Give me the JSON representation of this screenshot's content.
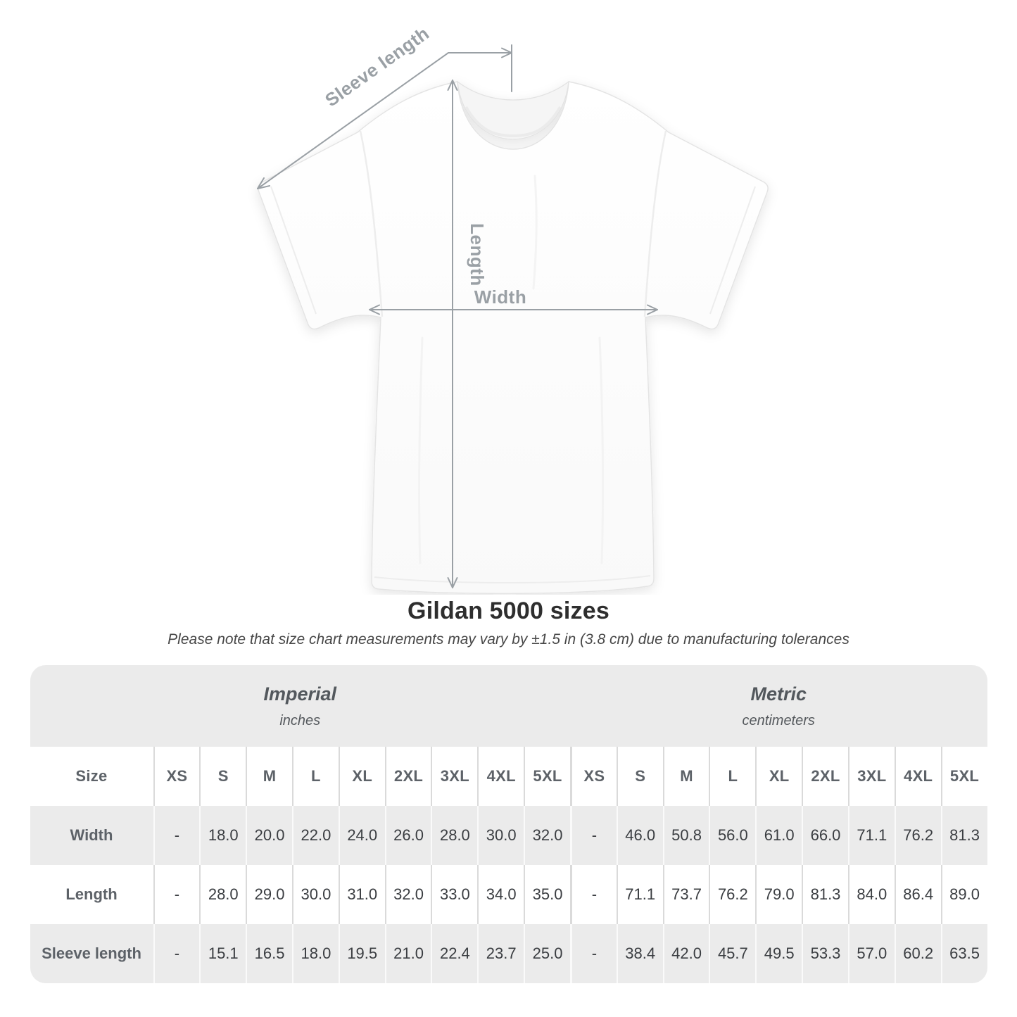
{
  "diagram": {
    "labels": {
      "sleeve_length": "Sleeve length",
      "length": "Length",
      "width": "Width"
    },
    "annotation_color": "#9aa0a5"
  },
  "title": "Gildan 5000 sizes",
  "subtitle": "Please note that size chart measurements may vary by ±1.5 in (3.8 cm) due to manufacturing tolerances",
  "table": {
    "size_header_label": "Size",
    "unit_groups": [
      {
        "label": "Imperial",
        "sublabel": "inches"
      },
      {
        "label": "Metric",
        "sublabel": "centimeters"
      }
    ],
    "sizes": [
      "XS",
      "S",
      "M",
      "L",
      "XL",
      "2XL",
      "3XL",
      "4XL",
      "5XL"
    ],
    "rows": [
      {
        "label": "Width",
        "imperial": [
          "-",
          "18.0",
          "20.0",
          "22.0",
          "24.0",
          "26.0",
          "28.0",
          "30.0",
          "32.0"
        ],
        "metric": [
          "-",
          "46.0",
          "50.8",
          "56.0",
          "61.0",
          "66.0",
          "71.1",
          "76.2",
          "81.3"
        ]
      },
      {
        "label": "Length",
        "imperial": [
          "-",
          "28.0",
          "29.0",
          "30.0",
          "31.0",
          "32.0",
          "33.0",
          "34.0",
          "35.0"
        ],
        "metric": [
          "-",
          "71.1",
          "73.7",
          "76.2",
          "79.0",
          "81.3",
          "84.0",
          "86.4",
          "89.0"
        ]
      },
      {
        "label": "Sleeve length",
        "imperial": [
          "-",
          "15.1",
          "16.5",
          "18.0",
          "19.5",
          "21.0",
          "22.4",
          "23.7",
          "25.0"
        ],
        "metric": [
          "-",
          "38.4",
          "42.0",
          "45.7",
          "49.5",
          "53.3",
          "57.0",
          "60.2",
          "63.5"
        ]
      }
    ]
  },
  "colors": {
    "band_gray": "#ebebeb",
    "separator_on_white": "#dadada",
    "separator_on_gray": "#fafafa",
    "label_gray": "#5d6268",
    "value_dark": "#3a3d41",
    "annotation_gray": "#9aa0a5"
  },
  "chart_data": {
    "type": "table",
    "title": "Gildan 5000 sizes",
    "note": "Please note that size chart measurements may vary by ±1.5 in (3.8 cm) due to manufacturing tolerances",
    "columns": [
      "Size",
      "XS",
      "S",
      "M",
      "L",
      "XL",
      "2XL",
      "3XL",
      "4XL",
      "5XL"
    ],
    "imperial_unit": "inches",
    "metric_unit": "centimeters",
    "rows_imperial": [
      [
        "Width",
        null,
        18.0,
        20.0,
        22.0,
        24.0,
        26.0,
        28.0,
        30.0,
        32.0
      ],
      [
        "Length",
        null,
        28.0,
        29.0,
        30.0,
        31.0,
        32.0,
        33.0,
        34.0,
        35.0
      ],
      [
        "Sleeve length",
        null,
        15.1,
        16.5,
        18.0,
        19.5,
        21.0,
        22.4,
        23.7,
        25.0
      ]
    ],
    "rows_metric": [
      [
        "Width",
        null,
        46.0,
        50.8,
        56.0,
        61.0,
        66.0,
        71.1,
        76.2,
        81.3
      ],
      [
        "Length",
        null,
        71.1,
        73.7,
        76.2,
        79.0,
        81.3,
        84.0,
        86.4,
        89.0
      ],
      [
        "Sleeve length",
        null,
        38.4,
        42.0,
        45.7,
        49.5,
        53.3,
        57.0,
        60.2,
        63.5
      ]
    ]
  }
}
